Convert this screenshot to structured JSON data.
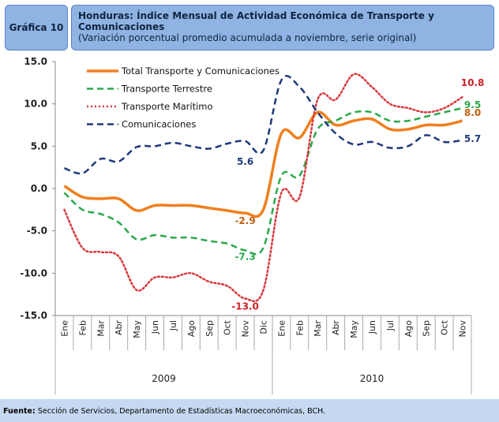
{
  "header": {
    "badge": "Gráfica 10",
    "title": "Honduras: Índice Mensual de Actividad Económica de Transporte y Comunicaciones",
    "subtitle": "(Variación porcentual promedio acumulada a noviembre, serie original)"
  },
  "footer": {
    "label": "Fuente:",
    "text": "Sección de Servicios, Departamento de Estadísticas Macroeconómicas, BCH."
  },
  "chart_data": {
    "type": "line",
    "categories": [
      "Ene",
      "Feb",
      "Mar",
      "Abr",
      "May",
      "Jun",
      "Jul",
      "Ago",
      "Sep",
      "Oct",
      "Nov",
      "Dic",
      "Ene",
      "Feb",
      "Mar",
      "Abr",
      "May",
      "Jun",
      "Jul",
      "Ago",
      "Sep",
      "Oct",
      "Nov"
    ],
    "years": [
      "2009",
      "2010"
    ],
    "ylim": [
      -15,
      15
    ],
    "yticks": [
      {
        "value": 15,
        "label": "15.0"
      },
      {
        "value": 10,
        "label": "10.0"
      },
      {
        "value": 5,
        "label": "5.0"
      },
      {
        "value": 0,
        "label": "0.0"
      },
      {
        "value": -5,
        "label": "-5.0"
      },
      {
        "value": -10,
        "label": "-10.0"
      },
      {
        "value": -15,
        "label": "-15.0"
      }
    ],
    "legend": "upper left",
    "series": [
      {
        "name": "Total Transporte y Comunicaciones",
        "color": "#f07f1f",
        "style": "solid",
        "values": [
          0.3,
          -1.0,
          -1.2,
          -1.2,
          -2.6,
          -2.0,
          -2.0,
          -2.0,
          -2.3,
          -2.6,
          -2.9,
          -2.5,
          6.5,
          6.0,
          9.0,
          7.5,
          8.0,
          8.2,
          7.0,
          7.0,
          7.5,
          7.5,
          8.0
        ],
        "value_labels": [
          null,
          null,
          null,
          null,
          null,
          null,
          null,
          null,
          null,
          null,
          "-2.9",
          null,
          null,
          null,
          null,
          null,
          null,
          null,
          null,
          null,
          null,
          null,
          "8.0"
        ]
      },
      {
        "name": "Transporte Terrestre",
        "color": "#2aa84a",
        "style": "dashed",
        "values": [
          -0.5,
          -2.5,
          -3.0,
          -4.0,
          -6.0,
          -5.5,
          -5.8,
          -5.8,
          -6.2,
          -6.5,
          -7.3,
          -7.0,
          1.5,
          1.5,
          7.0,
          8.0,
          9.0,
          9.0,
          8.0,
          8.0,
          8.5,
          9.0,
          9.5
        ],
        "value_labels": [
          null,
          null,
          null,
          null,
          null,
          null,
          null,
          null,
          null,
          null,
          "-7.3",
          null,
          null,
          null,
          null,
          null,
          null,
          null,
          null,
          null,
          null,
          null,
          "9.5"
        ]
      },
      {
        "name": "Transporte Marítimo",
        "color": "#d9393c",
        "style": "dotted",
        "values": [
          -2.5,
          -7.0,
          -7.5,
          -8.0,
          -12.0,
          -10.5,
          -10.5,
          -10.0,
          -11.0,
          -11.5,
          -13.0,
          -12.0,
          -0.5,
          -1.0,
          10.5,
          10.5,
          13.5,
          12.0,
          10.0,
          9.5,
          9.0,
          9.5,
          10.8
        ],
        "value_labels": [
          null,
          null,
          null,
          null,
          null,
          null,
          null,
          null,
          null,
          null,
          "-13.0",
          null,
          null,
          null,
          null,
          null,
          null,
          null,
          null,
          null,
          null,
          null,
          "10.8"
        ]
      },
      {
        "name": "Comunicaciones",
        "color": "#1f3a7a",
        "style": "dashed",
        "values": [
          2.4,
          1.8,
          3.5,
          3.2,
          4.9,
          5.0,
          5.4,
          5.0,
          4.7,
          5.3,
          5.6,
          4.5,
          12.8,
          12.0,
          9.0,
          6.5,
          5.2,
          5.5,
          4.8,
          5.0,
          6.3,
          5.5,
          5.7
        ],
        "value_labels": [
          null,
          null,
          null,
          null,
          null,
          null,
          null,
          null,
          null,
          null,
          "5.6",
          null,
          null,
          null,
          null,
          null,
          null,
          null,
          null,
          null,
          null,
          null,
          "5.7"
        ]
      }
    ]
  }
}
